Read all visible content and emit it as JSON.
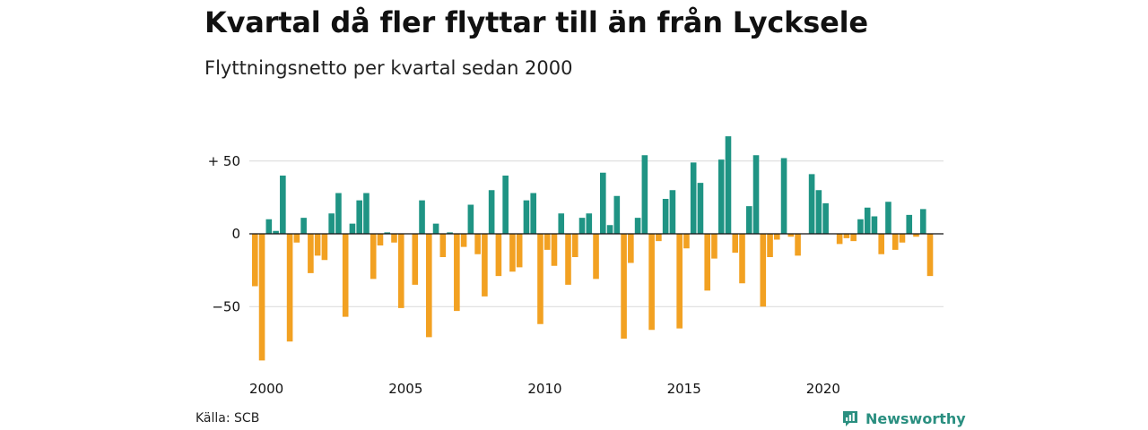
{
  "header": {
    "title": "Kvartal då fler flyttar till än från Lycksele",
    "subtitle": "Flyttningsnetto per kvartal sedan 2000"
  },
  "footer": {
    "source": "Källa: SCB",
    "brand": "Newsworthy"
  },
  "colors": {
    "positive": "#1f9484",
    "negative": "#f2a122",
    "grid": "#d9d9d9",
    "zero_line": "#111111"
  },
  "chart_data": {
    "type": "bar",
    "title": "Kvartal då fler flyttar till än från Lycksele",
    "subtitle": "Flyttningsnetto per kvartal sedan 2000",
    "xlabel": "",
    "ylabel": "",
    "ylim": [
      -90,
      70
    ],
    "yticks": [
      {
        "value": 50,
        "label": "+ 50"
      },
      {
        "value": 0,
        "label": "0"
      },
      {
        "value": -50,
        "label": "−50"
      }
    ],
    "xticks": [
      "2000",
      "2005",
      "2010",
      "2015",
      "2020"
    ],
    "grid": true,
    "start_quarter": "2000Q1",
    "values": [
      -36,
      -87,
      10,
      2,
      40,
      -74,
      -6,
      11,
      -27,
      -15,
      -18,
      14,
      28,
      -57,
      7,
      23,
      28,
      -31,
      -8,
      1,
      -6,
      -51,
      0,
      -35,
      23,
      -71,
      7,
      -16,
      1,
      -53,
      -9,
      20,
      -14,
      -43,
      30,
      -29,
      40,
      -26,
      -23,
      23,
      28,
      -62,
      -11,
      -22,
      14,
      -35,
      -16,
      11,
      14,
      -31,
      42,
      6,
      26,
      -72,
      -20,
      11,
      54,
      -66,
      -5,
      24,
      30,
      -65,
      -10,
      49,
      35,
      -39,
      -17,
      51,
      67,
      -13,
      -34,
      19,
      54,
      -50,
      -16,
      -4,
      52,
      -2,
      -15,
      0,
      41,
      30,
      21,
      0,
      -7,
      -3,
      -5,
      10,
      18,
      12,
      -14,
      22,
      -11,
      -6,
      13,
      -2,
      17,
      -29
    ]
  }
}
